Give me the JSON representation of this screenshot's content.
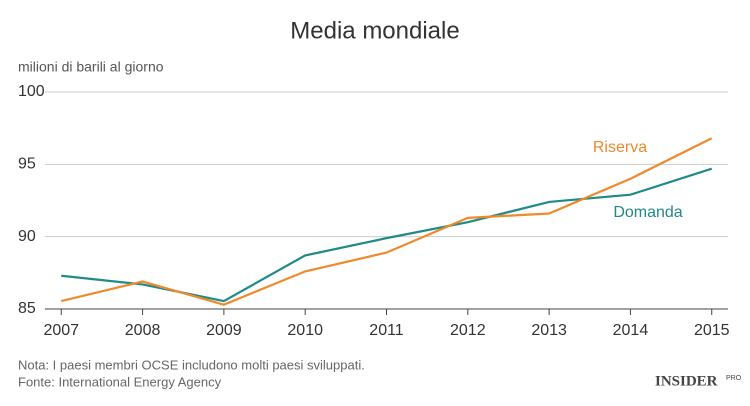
{
  "chart_data": {
    "type": "line",
    "title": "Media mondiale",
    "y_label": "milioni di barili al giorno",
    "x": [
      2007,
      2008,
      2009,
      2010,
      2011,
      2012,
      2013,
      2014,
      2015
    ],
    "xlim": [
      2006.8,
      2015.2
    ],
    "xticks": [
      2007,
      2008,
      2009,
      2010,
      2011,
      2012,
      2013,
      2014,
      2015
    ],
    "ylim": [
      85,
      100
    ],
    "yticks": [
      85,
      90,
      95,
      100
    ],
    "grid": true,
    "series": [
      {
        "name": "Domanda",
        "color": "#1f8a87",
        "values": [
          87.3,
          86.7,
          85.55,
          88.7,
          89.9,
          91.0,
          92.4,
          92.9,
          94.7
        ]
      },
      {
        "name": "Riserva",
        "color": "#ee8a2c",
        "values": [
          85.55,
          86.9,
          85.3,
          87.6,
          88.9,
          91.3,
          91.6,
          94.0,
          96.8
        ]
      }
    ],
    "note": "Nota: I paesi membri OCSE includono molti paesi sviluppati.",
    "source": "Fonte: International Energy Agency",
    "logo": {
      "text": "INSIDER",
      "badge": "PRO"
    }
  }
}
